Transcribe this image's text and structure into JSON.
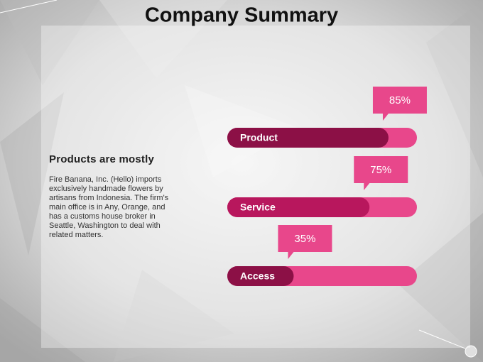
{
  "chart_data": {
    "type": "bar",
    "title": "Company Summary",
    "categories": [
      "Product",
      "Service",
      "Access"
    ],
    "values": [
      85,
      75,
      35
    ],
    "value_labels": [
      "85%",
      "75%",
      "35%"
    ],
    "xlim": [
      0,
      100
    ],
    "colors": {
      "track": "#e8478b",
      "fill": [
        "#8c1046",
        "#b8175d",
        "#8c1046"
      ],
      "callout": "#e8478b"
    }
  },
  "text": {
    "heading": "Products are mostly",
    "body": "Fire Banana, Inc. (Hello) imports exclusively handmade flowers by artisans from Indonesia. The firm's main office is in Any, Orange, and has a customs house broker in Seattle, Washington to deal with related matters."
  }
}
